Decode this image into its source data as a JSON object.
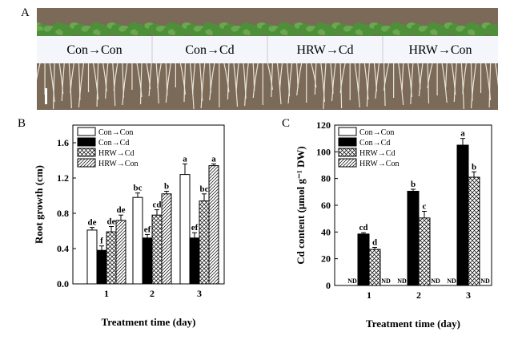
{
  "panel_labels": {
    "a": "A",
    "b": "B",
    "c": "C"
  },
  "photo": {
    "strip_labels": [
      "Con→Con",
      "Con→Cd",
      "HRW→Cd",
      "HRW→Con"
    ],
    "colors": {
      "background": "#7b6a57",
      "leaves": "#4e8f3a",
      "label_band": "#f4f6fb",
      "roots": "#e9e4da"
    }
  },
  "legend_entries": [
    "Con→Con",
    "Con→Cd",
    "HRW→Cd",
    "HRW→Con"
  ],
  "chart_data": [
    {
      "type": "bar",
      "panel": "B",
      "xlabel": "Treatment time (day)",
      "ylabel": "Root growth (cm)",
      "categories": [
        "1",
        "2",
        "3"
      ],
      "ylim": [
        0.0,
        1.8
      ],
      "yticks": [
        "0.0",
        "0.4",
        "0.8",
        "1.2",
        "1.6"
      ],
      "legend_position": "top-left",
      "series": [
        {
          "name": "Con→Con",
          "fill": "white",
          "values": [
            0.61,
            0.98,
            1.24
          ],
          "errors": [
            0.03,
            0.05,
            0.12
          ],
          "letters": [
            "de",
            "bc",
            "a"
          ]
        },
        {
          "name": "Con→Cd",
          "fill": "black",
          "values": [
            0.38,
            0.52,
            0.52
          ],
          "errors": [
            0.05,
            0.04,
            0.06
          ],
          "letters": [
            "f",
            "ef",
            "ef"
          ]
        },
        {
          "name": "HRW→Cd",
          "fill": "crosshatch",
          "values": [
            0.59,
            0.78,
            0.94
          ],
          "errors": [
            0.06,
            0.06,
            0.08
          ],
          "letters": [
            "de",
            "cd",
            "bc"
          ]
        },
        {
          "name": "HRW→Con",
          "fill": "diagonal",
          "values": [
            0.72,
            1.02,
            1.34
          ],
          "errors": [
            0.06,
            0.03,
            0.02
          ],
          "letters": [
            "de",
            "b",
            "a"
          ]
        }
      ]
    },
    {
      "type": "bar",
      "panel": "C",
      "xlabel": "Treatment time (day)",
      "ylabel": "Cd content (μmol g⁻¹ DW)",
      "categories": [
        "1",
        "2",
        "3"
      ],
      "ylim": [
        0,
        120
      ],
      "yticks": [
        "0",
        "20",
        "40",
        "60",
        "80",
        "100",
        "120"
      ],
      "legend_position": "top-left",
      "series": [
        {
          "name": "Con→Con",
          "fill": "white",
          "values": [
            null,
            null,
            null
          ],
          "errors": [
            null,
            null,
            null
          ],
          "letters": [
            "ND",
            "ND",
            "ND"
          ]
        },
        {
          "name": "Con→Cd",
          "fill": "black",
          "values": [
            38.5,
            70.5,
            105
          ],
          "errors": [
            1.0,
            1.5,
            5
          ],
          "letters": [
            "cd",
            "b",
            "a"
          ]
        },
        {
          "name": "HRW→Cd",
          "fill": "crosshatch",
          "values": [
            27,
            50.5,
            81
          ],
          "errors": [
            1.5,
            5,
            4
          ],
          "letters": [
            "d",
            "c",
            "b"
          ]
        },
        {
          "name": "HRW→Con",
          "fill": "diagonal",
          "values": [
            null,
            null,
            null
          ],
          "errors": [
            null,
            null,
            null
          ],
          "letters": [
            "ND",
            "ND",
            "ND"
          ]
        }
      ]
    }
  ]
}
